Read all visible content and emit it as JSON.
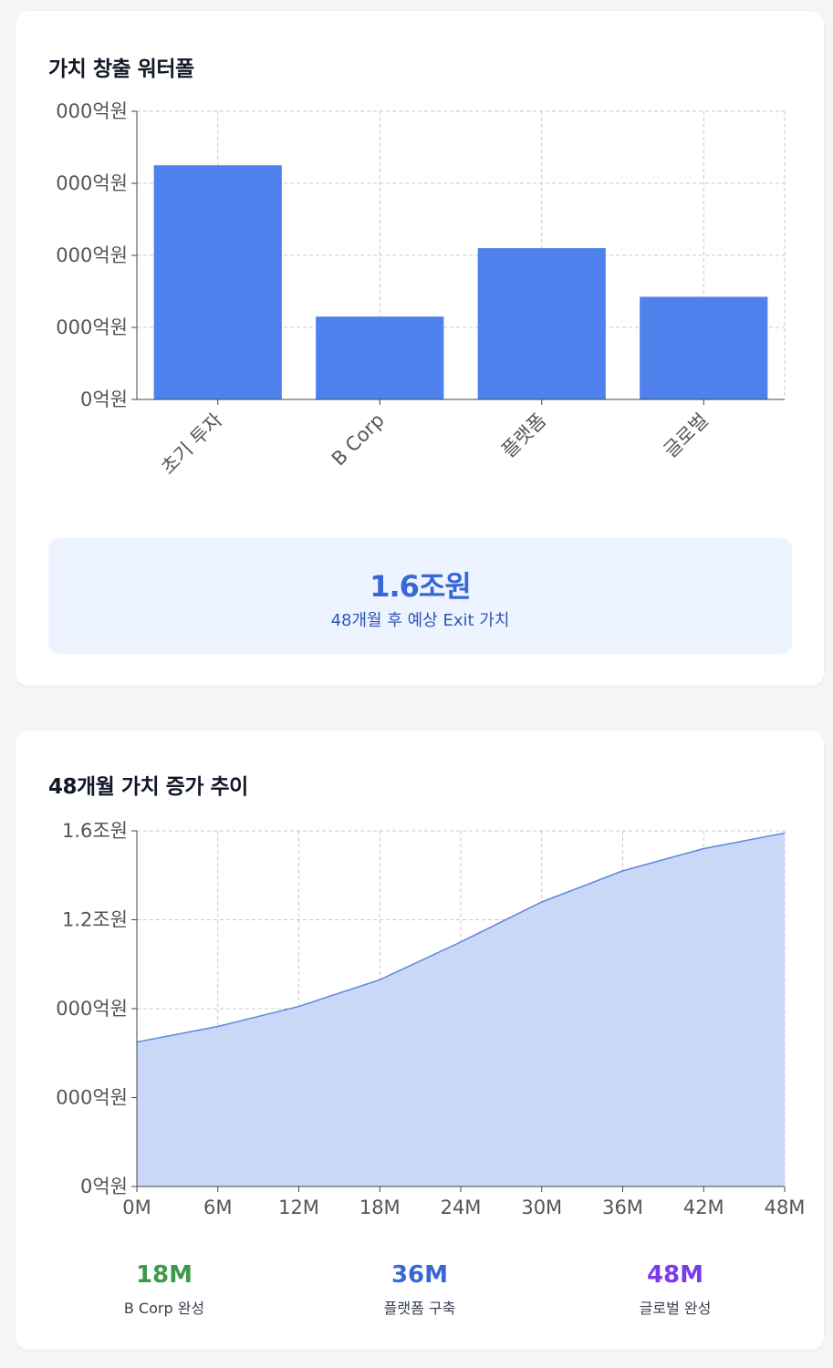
{
  "card1": {
    "title": "가치 창출 워터폴"
  },
  "card2": {
    "title": "48개월 가치 증가 추이"
  },
  "summary": {
    "value": "1.6조원",
    "label": "48개월 후 예상 Exit 가치"
  },
  "milestones": [
    {
      "month": "18M",
      "label": "B Corp 완성",
      "color": "#3f9a47"
    },
    {
      "month": "36M",
      "label": "플랫폼 구축",
      "color": "#3867d6"
    },
    {
      "month": "48M",
      "label": "글로벌 완성",
      "color": "#7c3aed"
    }
  ],
  "colors": {
    "bar": "#4f81ed",
    "area_fill": "#cad8f8",
    "area_line": "#5b86de",
    "grid": "#c8c8c8"
  },
  "chart_data": [
    {
      "type": "bar",
      "title": "가치 창출 워터폴",
      "categories": [
        "초기 투자",
        "B Corp",
        "플랫폼",
        "글로벌"
      ],
      "values": [
        0.65,
        0.23,
        0.42,
        0.285
      ],
      "y_tick_labels": [
        "0억원",
        "000억원",
        "000억원",
        "000억원",
        "000억원"
      ],
      "ylim": [
        0,
        0.8
      ],
      "grid": true
    },
    {
      "type": "area",
      "title": "48개월 가치 증가 추이",
      "x": [
        0,
        6,
        12,
        18,
        24,
        30,
        36,
        42,
        48
      ],
      "x_tick_labels": [
        "0M",
        "6M",
        "12M",
        "18M",
        "24M",
        "30M",
        "36M",
        "42M",
        "48M"
      ],
      "values": [
        0.65,
        0.72,
        0.81,
        0.93,
        1.1,
        1.28,
        1.42,
        1.52,
        1.59
      ],
      "y_tick_labels": [
        "0억원",
        "000억원",
        "000억원",
        "1.2조원",
        "1.6조원"
      ],
      "ylim": [
        0,
        1.6
      ],
      "grid": true
    }
  ]
}
